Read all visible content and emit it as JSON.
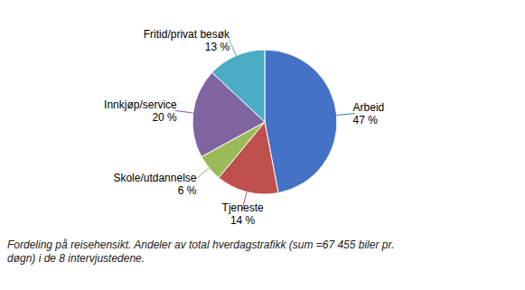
{
  "chart_data": {
    "type": "pie",
    "title": "Fordeling på reisehensikt. Andeler av total hverdagstrafikk (sum =67 455 biler pr.\ndøgn) i de 8 intervjustedene.",
    "categories": [
      "Arbeid",
      "Tjeneste",
      "Skole/utdannelse",
      "Innkjøp/service",
      "Fritid/privat besøk"
    ],
    "values": [
      47,
      14,
      6,
      20,
      13
    ],
    "value_labels": [
      "47 %",
      "14 %",
      "6 %",
      "20 %",
      "13 %"
    ],
    "colors": [
      "#4472C4",
      "#C0504D",
      "#9BBB59",
      "#8064A2",
      "#4BACC6"
    ],
    "data_labels": true
  }
}
